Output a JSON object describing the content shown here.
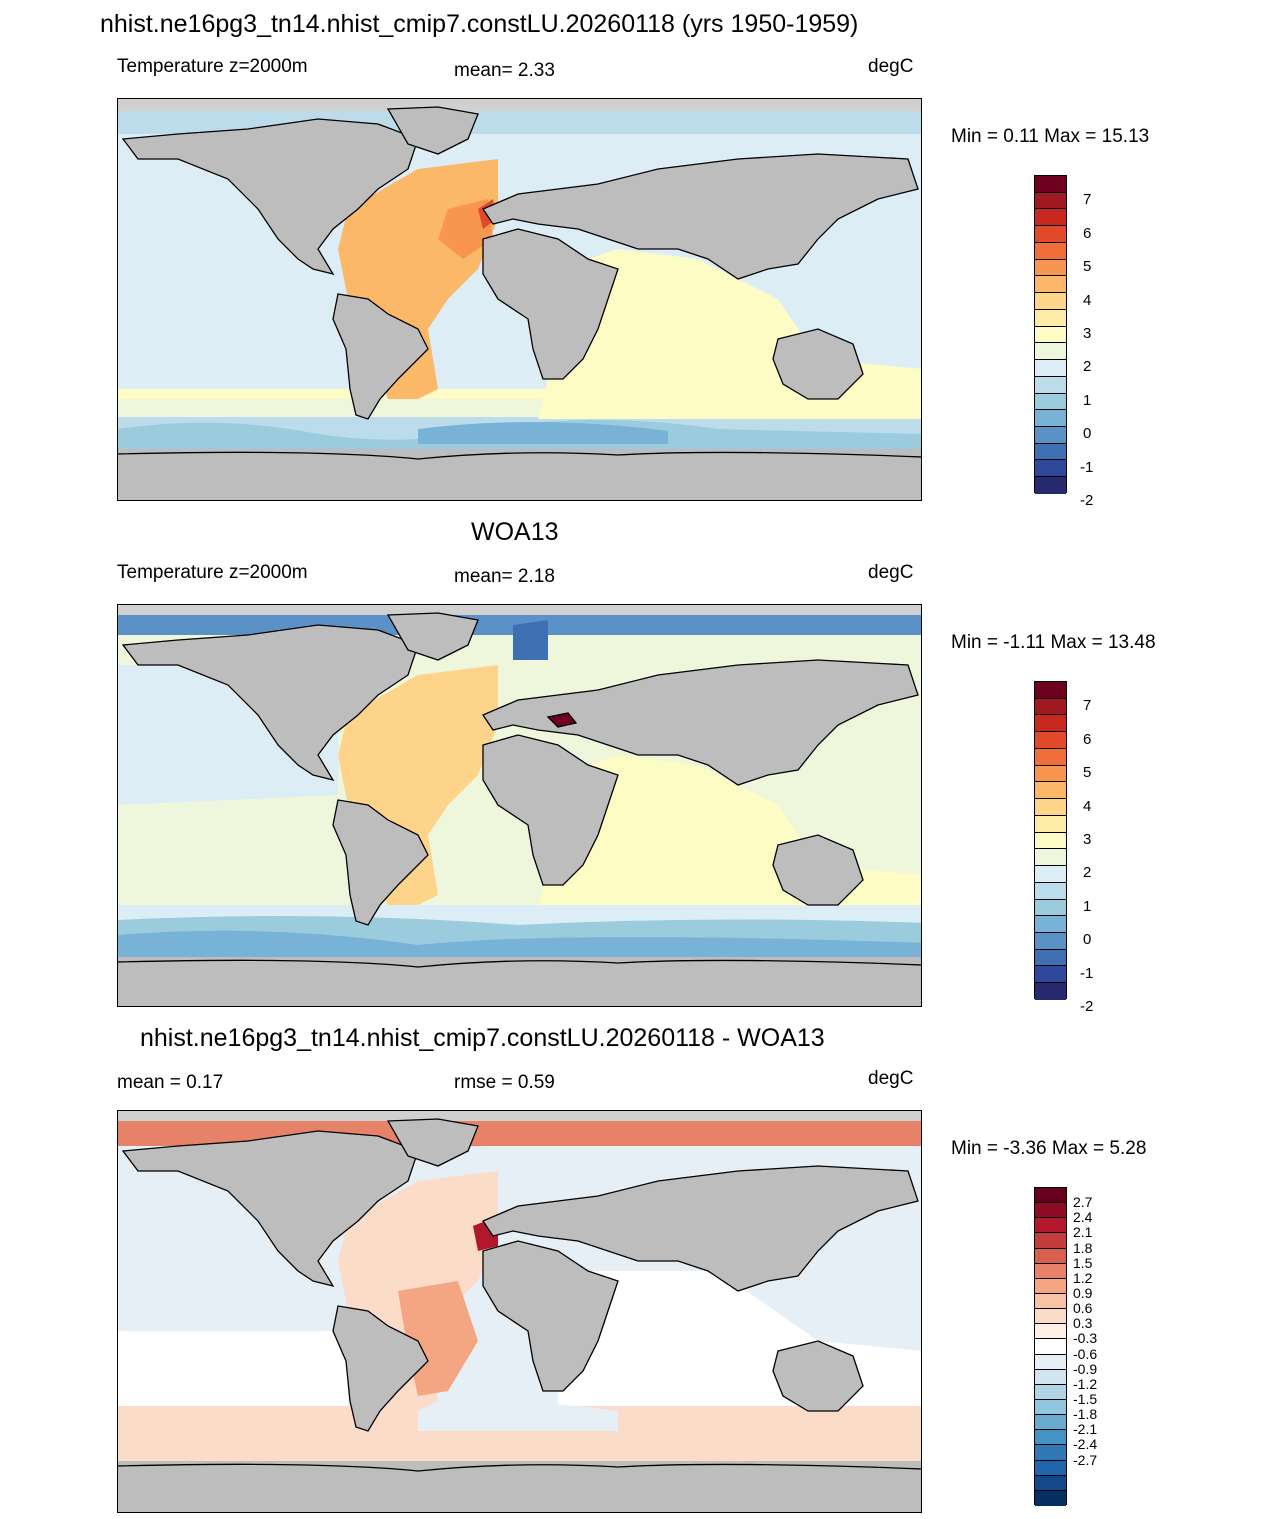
{
  "panel1": {
    "title": "nhist.ne16pg3_tn14.nhist_cmip7.constLU.20260118 (yrs 1950-1959)",
    "left": "Temperature z=2000m",
    "center": "mean=   2.33",
    "right": "degC",
    "minmax": "Min =   0.11 Max =  15.13"
  },
  "panel2": {
    "title": "WOA13",
    "left": "Temperature z=2000m",
    "center": "mean=   2.18",
    "right": "degC",
    "minmax": "Min =  -1.11 Max =  13.48"
  },
  "panel3": {
    "title": "nhist.ne16pg3_tn14.nhist_cmip7.constLU.20260118 - WOA13",
    "left": "mean =   0.17",
    "center": "rmse =   0.59",
    "right": "degC",
    "minmax": "Min =  -3.36 Max =    5.28"
  },
  "colorbar_abs": {
    "labels": [
      "7",
      "6",
      "5",
      "4",
      "3",
      "2",
      "1",
      "0",
      "-1",
      "-2"
    ],
    "colors": [
      "#6e0020",
      "#a01820",
      "#c8281e",
      "#e04a2a",
      "#f06e3a",
      "#f89650",
      "#fbb868",
      "#fdd48a",
      "#fdeca6",
      "#fdfcc4",
      "#eef6dc",
      "#dcedf6",
      "#bcdcec",
      "#9accde",
      "#78b2d6",
      "#5a92c8",
      "#4070b4",
      "#30489a",
      "#282a70"
    ]
  },
  "colorbar_diff": {
    "labels": [
      "2.7",
      "2.4",
      "2.1",
      "1.8",
      "1.5",
      "1.2",
      "0.9",
      "0.6",
      "0.3",
      "-0.3",
      "-0.6",
      "-0.9",
      "-1.2",
      "-1.5",
      "-1.8",
      "-2.1",
      "-2.4",
      "-2.7"
    ],
    "colors": [
      "#67001f",
      "#8e0c25",
      "#b2182b",
      "#c43c3c",
      "#d6604d",
      "#e58267",
      "#f4a582",
      "#f8c2a4",
      "#fbdcc8",
      "#fdf0e6",
      "#ffffff",
      "#e6eff5",
      "#d1e5f0",
      "#b1d4e7",
      "#92c5de",
      "#6aaccf",
      "#4393c3",
      "#3079b4",
      "#2166ac",
      "#13488a",
      "#053061"
    ]
  },
  "colors": {
    "land": "#bdbdbd",
    "missing": "#c8c8c8"
  }
}
